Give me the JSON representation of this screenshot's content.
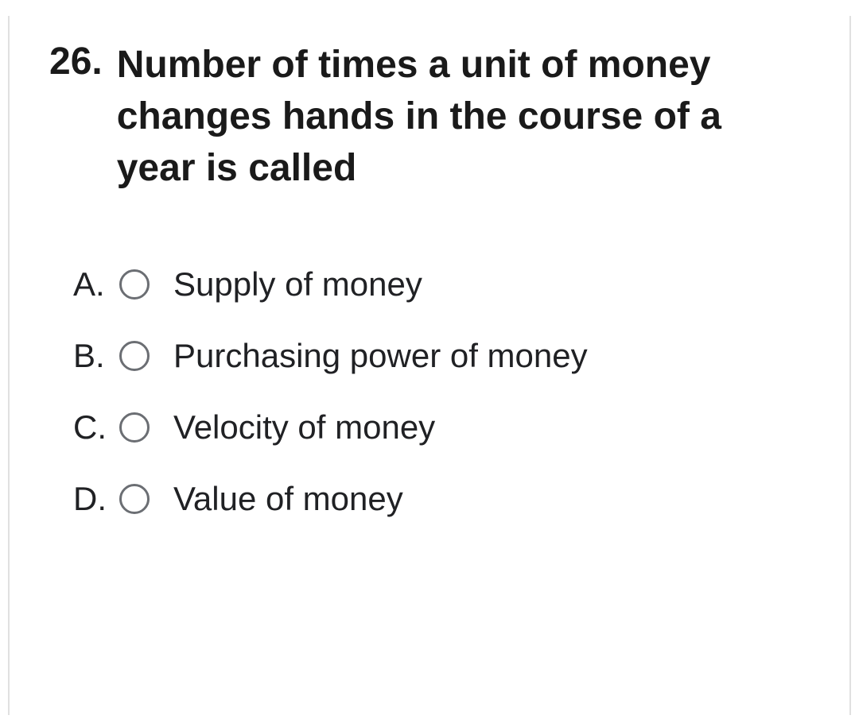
{
  "question": {
    "number": "26.",
    "text": "Number of times a unit of money changes hands in the course of a year is called"
  },
  "options": [
    {
      "letter": "A.",
      "text": "Supply of money"
    },
    {
      "letter": "B.",
      "text": "Purchasing power of money"
    },
    {
      "letter": "C.",
      "text": "Velocity of money"
    },
    {
      "letter": "D.",
      "text": "Value of money"
    }
  ],
  "colors": {
    "text_primary": "#1a1a1a",
    "text_option": "#202124",
    "radio_border": "#6b6e73",
    "border": "#e0e0e0",
    "background": "#ffffff"
  },
  "typography": {
    "question_fontsize": 48,
    "question_fontweight": 600,
    "option_fontsize": 42,
    "option_fontweight": 400
  }
}
